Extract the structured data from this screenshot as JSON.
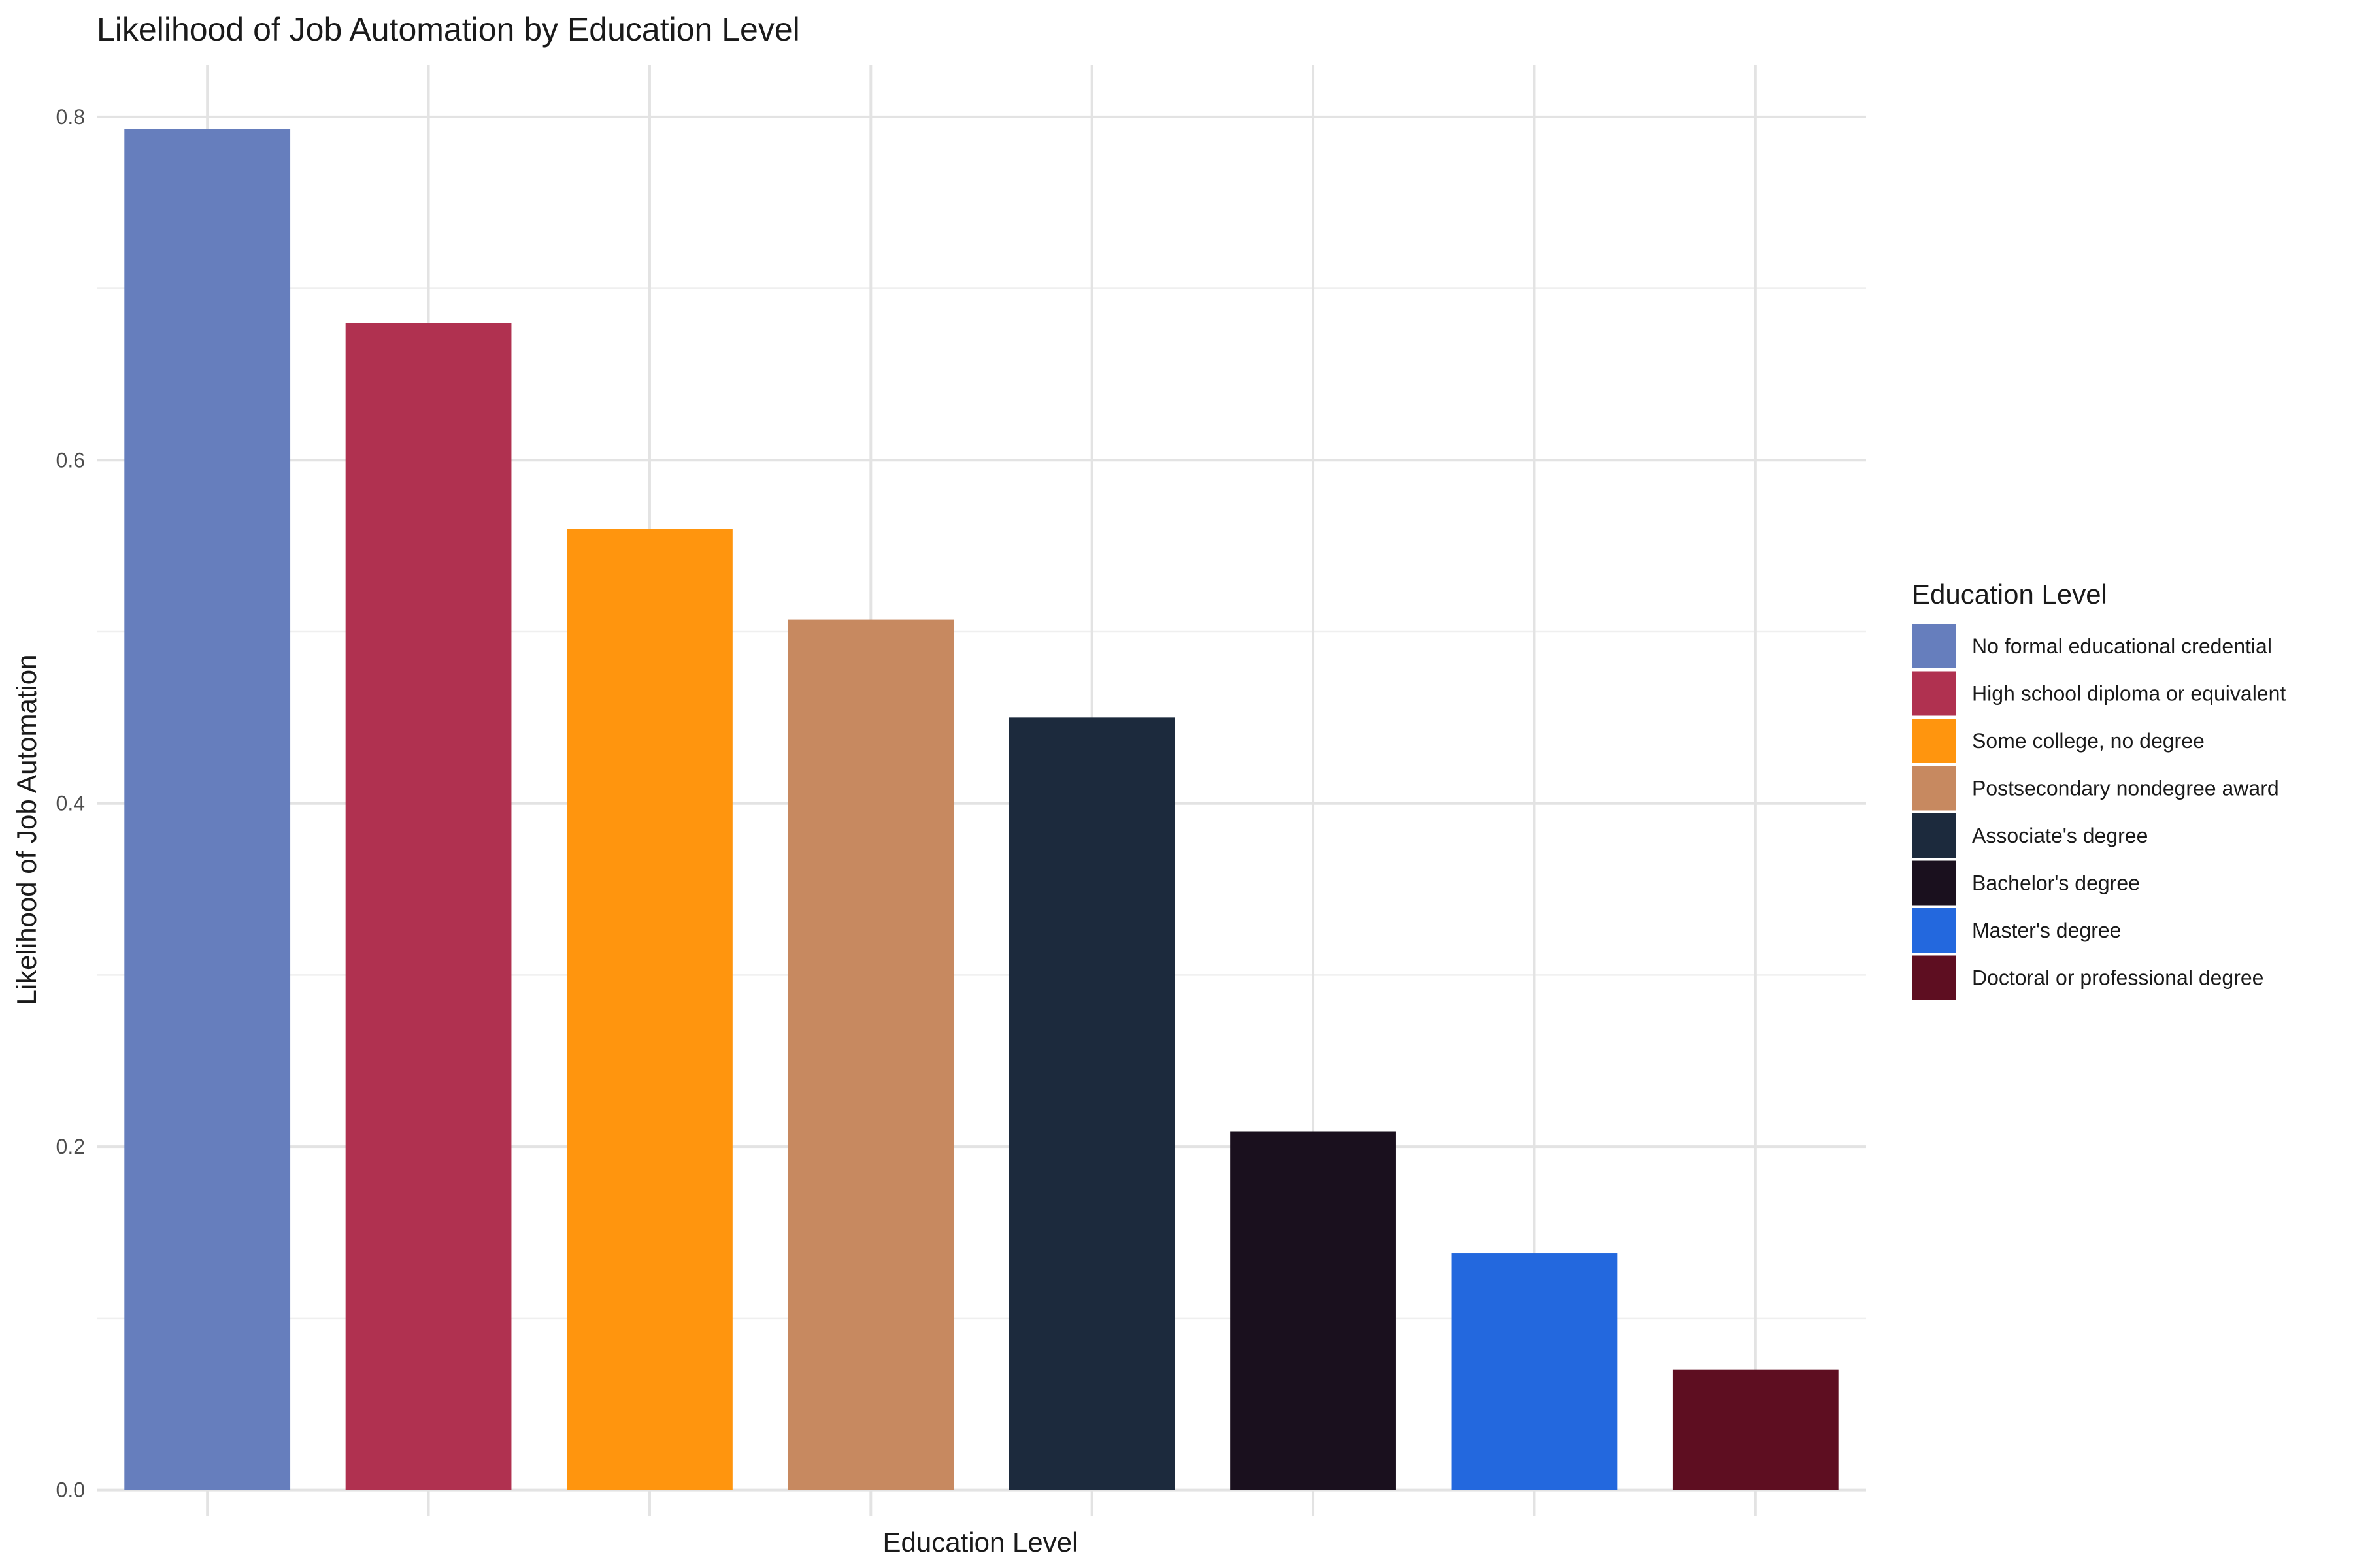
{
  "chart_data": {
    "type": "bar",
    "title": "Likelihood of Job Automation by Education Level",
    "xlabel": "Education Level",
    "ylabel": "Likelihood of Job Automation",
    "categories": [
      "No formal educational credential",
      "High school diploma or equivalent",
      "Some college, no degree",
      "Postsecondary nondegree award",
      "Associate's degree",
      "Bachelor's degree",
      "Master's degree",
      "Doctoral or professional degree"
    ],
    "values": [
      0.793,
      0.68,
      0.56,
      0.507,
      0.45,
      0.209,
      0.138,
      0.07
    ],
    "colors": [
      "#667EBD",
      "#B03150",
      "#FF950E",
      "#C78960",
      "#1C2A3D",
      "#1A101E",
      "#2368DE",
      "#5E0E21"
    ],
    "ylim": [
      -0.015,
      0.83
    ],
    "yticks": [
      0.0,
      0.2,
      0.4,
      0.6,
      0.8
    ],
    "ytick_labels": [
      "0.0",
      "0.2",
      "0.4",
      "0.6",
      "0.8"
    ],
    "grid": true,
    "legend": {
      "title": "Education Level",
      "position": "right"
    }
  }
}
